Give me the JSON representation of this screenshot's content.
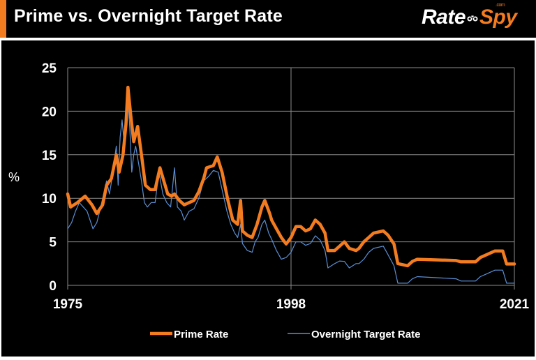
{
  "header": {
    "title": "Prime vs. Overnight Target Rate",
    "logo_rate": "Rate",
    "logo_spy": "Spy",
    "logo_com": ".com"
  },
  "colors": {
    "background": "#000000",
    "accent": "#f47c20",
    "prime": "#f47c20",
    "overnight": "#5b8fd4",
    "grid": "#8c8c8c",
    "text": "#ffffff"
  },
  "chart_data": {
    "type": "line",
    "title": "Prime vs. Overnight Target Rate",
    "ylabel": "%",
    "xlabel": "",
    "xlim": [
      1975,
      2021
    ],
    "ylim": [
      0,
      25
    ],
    "yticks": [
      0,
      5,
      10,
      15,
      20,
      25
    ],
    "xticks": [
      1975,
      1998,
      2021
    ],
    "grid": true,
    "legend_position": "bottom",
    "series": [
      {
        "name": "Prime Rate",
        "color": "#f47c20",
        "points": [
          [
            1975.0,
            10.5
          ],
          [
            1975.3,
            9.0
          ],
          [
            1976.0,
            9.5
          ],
          [
            1976.8,
            10.25
          ],
          [
            1977.5,
            9.25
          ],
          [
            1978.0,
            8.25
          ],
          [
            1978.6,
            9.25
          ],
          [
            1979.0,
            11.5
          ],
          [
            1979.5,
            12.25
          ],
          [
            1980.0,
            15.0
          ],
          [
            1980.3,
            13.0
          ],
          [
            1980.7,
            15.0
          ],
          [
            1981.0,
            18.5
          ],
          [
            1981.2,
            22.75
          ],
          [
            1981.5,
            19.5
          ],
          [
            1981.8,
            16.5
          ],
          [
            1982.2,
            18.25
          ],
          [
            1982.6,
            15.0
          ],
          [
            1983.0,
            11.5
          ],
          [
            1983.5,
            11.0
          ],
          [
            1984.0,
            11.0
          ],
          [
            1984.5,
            13.5
          ],
          [
            1984.9,
            12.0
          ],
          [
            1985.3,
            10.5
          ],
          [
            1985.7,
            10.25
          ],
          [
            1986.0,
            10.5
          ],
          [
            1986.5,
            9.75
          ],
          [
            1987.0,
            9.25
          ],
          [
            1987.5,
            9.5
          ],
          [
            1988.0,
            9.75
          ],
          [
            1988.5,
            10.75
          ],
          [
            1989.0,
            12.25
          ],
          [
            1989.3,
            13.5
          ],
          [
            1990.0,
            13.75
          ],
          [
            1990.4,
            14.75
          ],
          [
            1990.9,
            13.0
          ],
          [
            1991.5,
            9.75
          ],
          [
            1992.0,
            7.5
          ],
          [
            1992.5,
            7.0
          ],
          [
            1992.8,
            9.75
          ],
          [
            1993.0,
            6.25
          ],
          [
            1993.5,
            5.75
          ],
          [
            1994.0,
            5.5
          ],
          [
            1994.5,
            7.0
          ],
          [
            1995.0,
            9.0
          ],
          [
            1995.3,
            9.75
          ],
          [
            1995.8,
            8.25
          ],
          [
            1996.0,
            7.5
          ],
          [
            1996.5,
            6.5
          ],
          [
            1997.0,
            5.5
          ],
          [
            1997.5,
            4.75
          ],
          [
            1998.0,
            5.5
          ],
          [
            1998.5,
            6.75
          ],
          [
            1999.0,
            6.75
          ],
          [
            1999.5,
            6.25
          ],
          [
            2000.0,
            6.5
          ],
          [
            2000.5,
            7.5
          ],
          [
            2001.0,
            7.0
          ],
          [
            2001.5,
            6.0
          ],
          [
            2001.8,
            4.0
          ],
          [
            2002.5,
            4.0
          ],
          [
            2003.0,
            4.5
          ],
          [
            2003.5,
            5.0
          ],
          [
            2004.0,
            4.25
          ],
          [
            2004.7,
            4.0
          ],
          [
            2005.0,
            4.25
          ],
          [
            2005.5,
            5.0
          ],
          [
            2006.0,
            5.5
          ],
          [
            2006.5,
            6.0
          ],
          [
            2007.5,
            6.25
          ],
          [
            2008.0,
            5.75
          ],
          [
            2008.6,
            4.75
          ],
          [
            2009.0,
            2.5
          ],
          [
            2010.0,
            2.25
          ],
          [
            2010.5,
            2.75
          ],
          [
            2011.0,
            3.0
          ],
          [
            2015.0,
            2.85
          ],
          [
            2015.5,
            2.7
          ],
          [
            2017.0,
            2.7
          ],
          [
            2017.5,
            3.2
          ],
          [
            2018.0,
            3.45
          ],
          [
            2018.5,
            3.7
          ],
          [
            2019.0,
            3.95
          ],
          [
            2019.8,
            3.95
          ],
          [
            2020.2,
            2.45
          ],
          [
            2021.0,
            2.45
          ]
        ]
      },
      {
        "name": "Overnight Target Rate",
        "color": "#5b8fd4",
        "points": [
          [
            1975.0,
            6.5
          ],
          [
            1975.4,
            7.2
          ],
          [
            1975.8,
            8.5
          ],
          [
            1976.2,
            9.5
          ],
          [
            1976.6,
            9.0
          ],
          [
            1977.0,
            8.5
          ],
          [
            1977.3,
            7.5
          ],
          [
            1977.6,
            6.5
          ],
          [
            1978.0,
            7.2
          ],
          [
            1978.3,
            8.5
          ],
          [
            1978.7,
            10.5
          ],
          [
            1979.0,
            12.0
          ],
          [
            1979.3,
            10.5
          ],
          [
            1979.6,
            12.5
          ],
          [
            1980.0,
            16.0
          ],
          [
            1980.2,
            11.5
          ],
          [
            1980.4,
            17.0
          ],
          [
            1980.6,
            19.0
          ],
          [
            1980.8,
            16.5
          ],
          [
            1981.0,
            19.5
          ],
          [
            1981.2,
            21.5
          ],
          [
            1981.4,
            18.0
          ],
          [
            1981.6,
            13.0
          ],
          [
            1981.8,
            15.0
          ],
          [
            1982.0,
            16.0
          ],
          [
            1982.3,
            14.0
          ],
          [
            1982.6,
            12.0
          ],
          [
            1982.9,
            9.5
          ],
          [
            1983.2,
            9.0
          ],
          [
            1983.6,
            9.5
          ],
          [
            1984.0,
            9.5
          ],
          [
            1984.4,
            13.0
          ],
          [
            1984.8,
            10.5
          ],
          [
            1985.2,
            9.5
          ],
          [
            1985.6,
            9.0
          ],
          [
            1986.0,
            13.5
          ],
          [
            1986.3,
            9.0
          ],
          [
            1986.7,
            8.5
          ],
          [
            1987.0,
            7.5
          ],
          [
            1987.5,
            8.5
          ],
          [
            1988.0,
            8.8
          ],
          [
            1988.5,
            10.0
          ],
          [
            1989.0,
            12.0
          ],
          [
            1989.5,
            12.5
          ],
          [
            1990.0,
            13.2
          ],
          [
            1990.5,
            13.0
          ],
          [
            1990.9,
            11.0
          ],
          [
            1991.4,
            8.5
          ],
          [
            1991.8,
            7.0
          ],
          [
            1992.2,
            6.0
          ],
          [
            1992.5,
            5.5
          ],
          [
            1992.8,
            7.0
          ],
          [
            1993.0,
            4.8
          ],
          [
            1993.5,
            4.0
          ],
          [
            1994.0,
            3.8
          ],
          [
            1994.3,
            5.0
          ],
          [
            1994.6,
            5.5
          ],
          [
            1995.0,
            7.0
          ],
          [
            1995.3,
            7.5
          ],
          [
            1995.7,
            6.0
          ],
          [
            1996.0,
            5.3
          ],
          [
            1996.5,
            4.0
          ],
          [
            1997.0,
            3.0
          ],
          [
            1997.5,
            3.2
          ],
          [
            1998.0,
            3.8
          ],
          [
            1998.5,
            5.0
          ],
          [
            1999.0,
            5.0
          ],
          [
            1999.5,
            4.6
          ],
          [
            2000.0,
            4.8
          ],
          [
            2000.5,
            5.7
          ],
          [
            2001.0,
            5.2
          ],
          [
            2001.5,
            4.0
          ],
          [
            2001.8,
            2.0
          ],
          [
            2002.5,
            2.5
          ],
          [
            2003.0,
            2.8
          ],
          [
            2003.5,
            2.75
          ],
          [
            2004.0,
            2.0
          ],
          [
            2004.7,
            2.5
          ],
          [
            2005.0,
            2.5
          ],
          [
            2005.5,
            3.0
          ],
          [
            2006.0,
            3.8
          ],
          [
            2006.5,
            4.25
          ],
          [
            2007.5,
            4.5
          ],
          [
            2008.0,
            3.5
          ],
          [
            2008.6,
            2.25
          ],
          [
            2009.0,
            0.25
          ],
          [
            2010.0,
            0.25
          ],
          [
            2010.5,
            0.75
          ],
          [
            2011.0,
            1.0
          ],
          [
            2015.0,
            0.75
          ],
          [
            2015.5,
            0.5
          ],
          [
            2017.0,
            0.5
          ],
          [
            2017.5,
            1.0
          ],
          [
            2018.0,
            1.25
          ],
          [
            2018.5,
            1.5
          ],
          [
            2019.0,
            1.75
          ],
          [
            2019.8,
            1.75
          ],
          [
            2020.2,
            0.25
          ],
          [
            2021.0,
            0.25
          ]
        ]
      }
    ]
  }
}
